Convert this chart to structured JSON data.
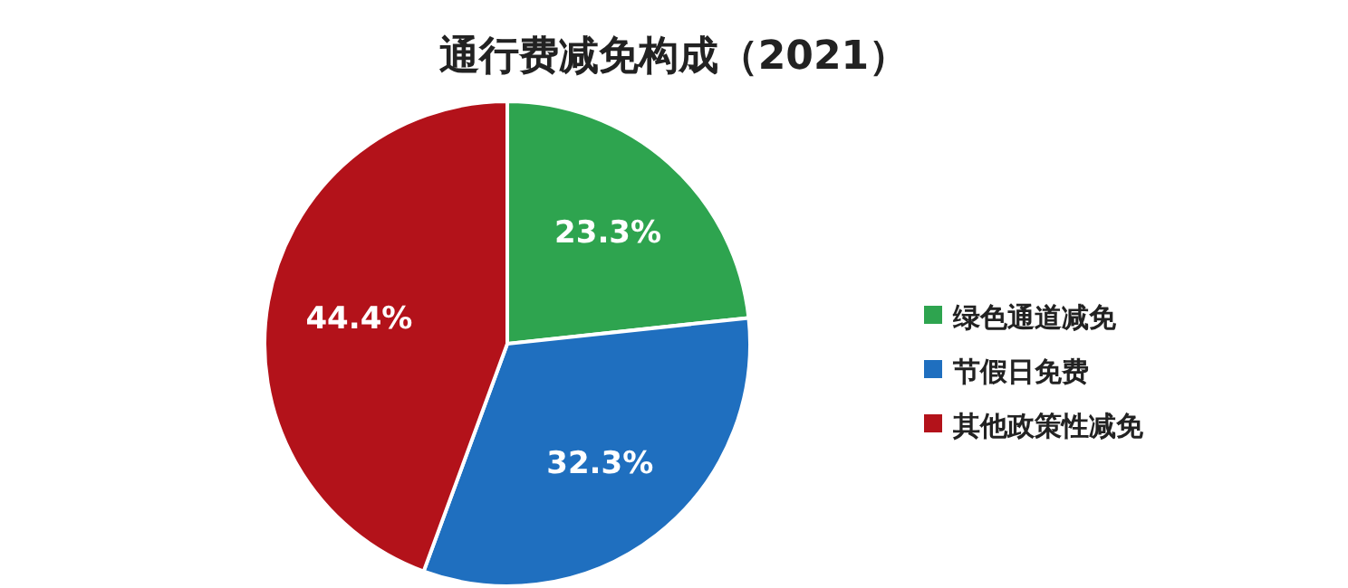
{
  "chart_data": {
    "type": "pie",
    "title": "通行费减免构成（2021）",
    "categories": [
      "绿色通道减免",
      "节假日免费",
      "其他政策性减免"
    ],
    "values": [
      23.3,
      32.3,
      44.4
    ],
    "colors": [
      "#2ea44f",
      "#1f6fbf",
      "#b3121a"
    ],
    "value_labels": [
      "23.3%",
      "32.3%",
      "44.4%"
    ],
    "legend": "right"
  }
}
